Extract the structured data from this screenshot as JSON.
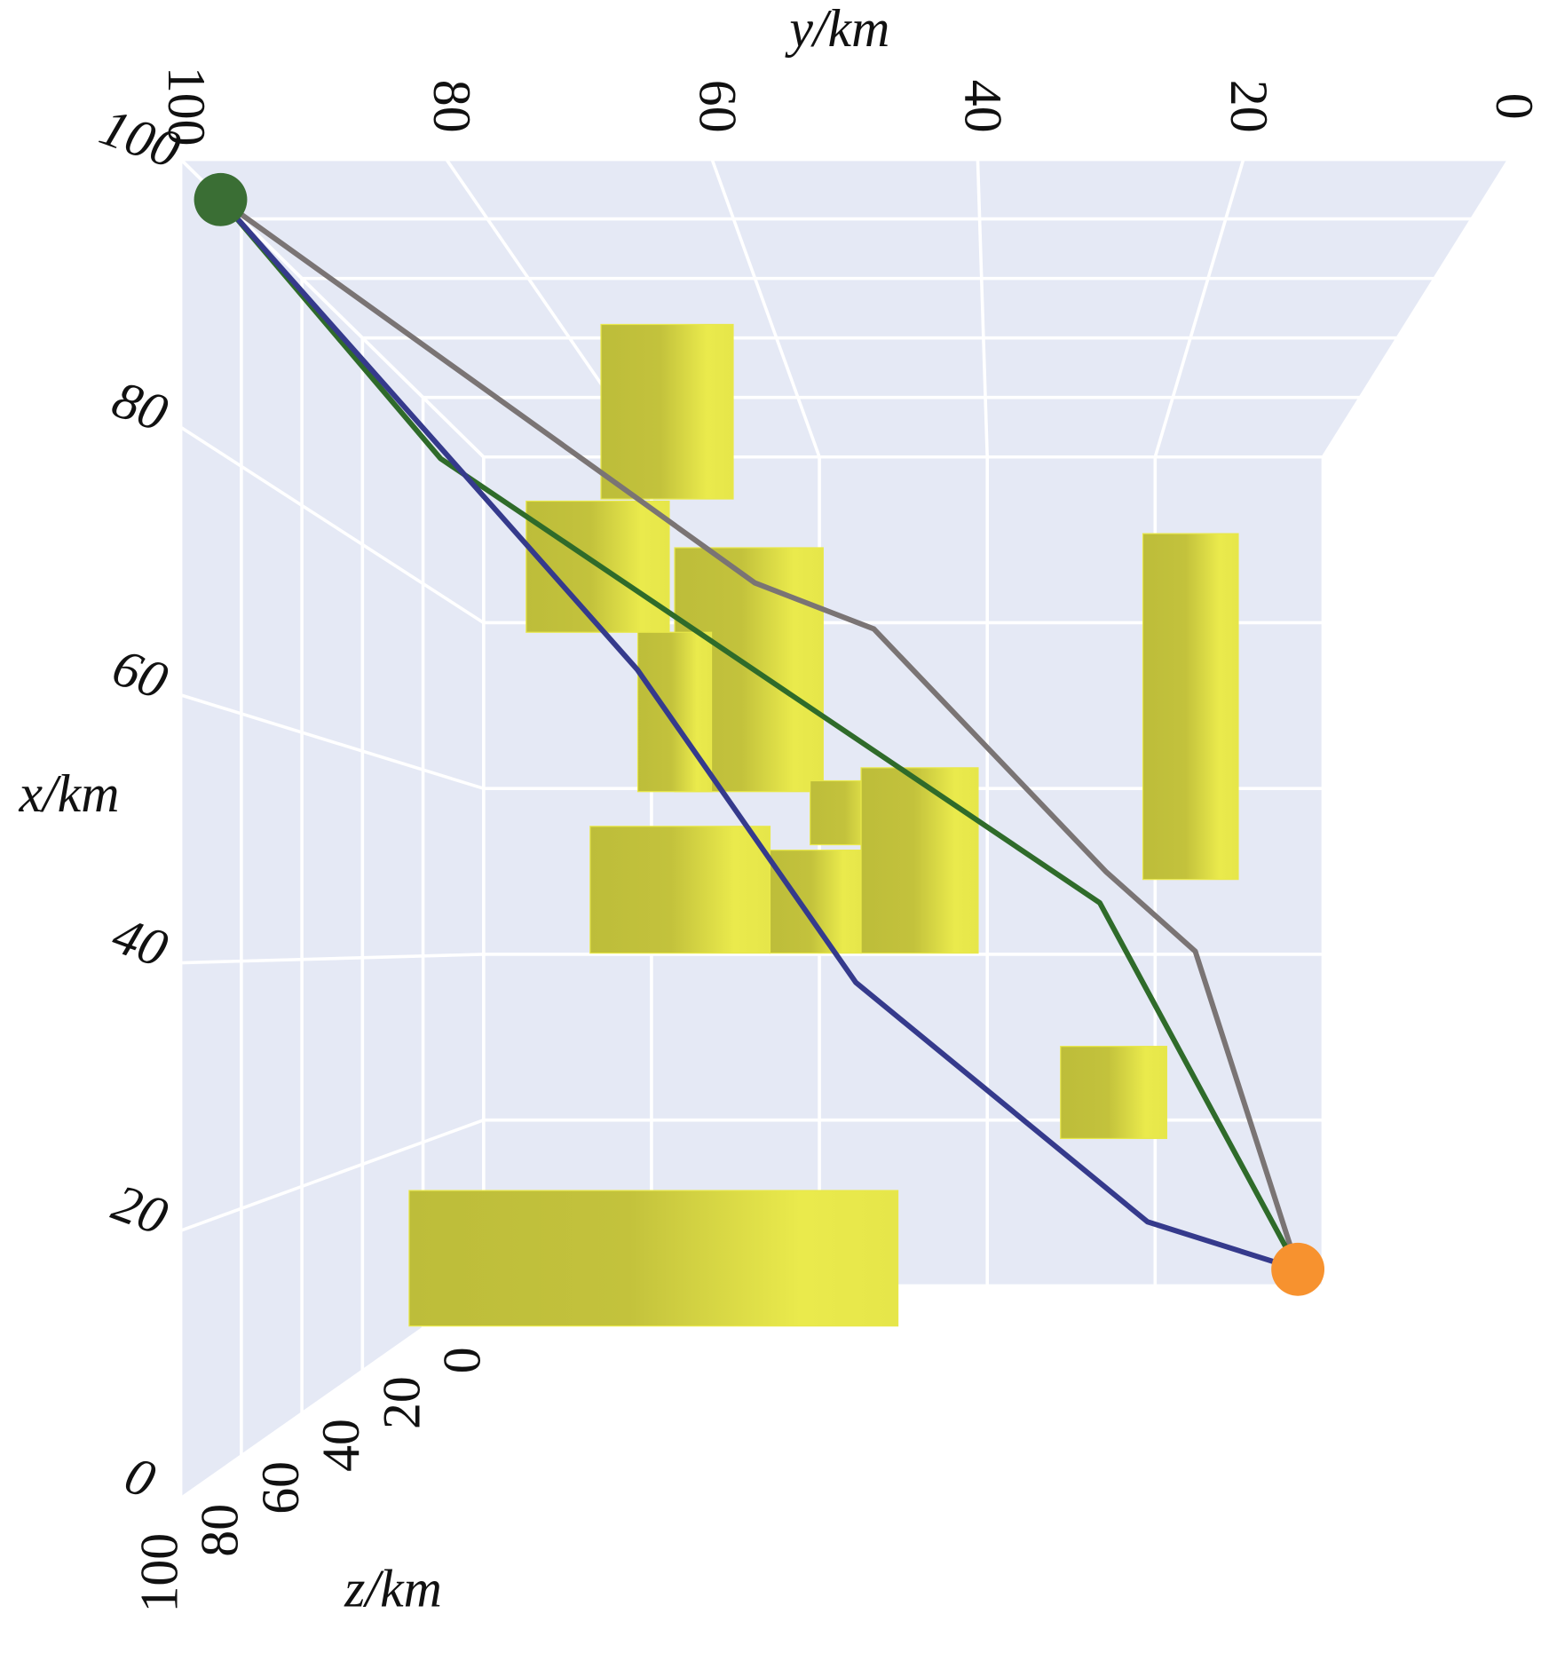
{
  "chart_data": {
    "type": "line3d",
    "x_label": "x/km",
    "y_label": "y/km",
    "z_label": "z/km",
    "xlim": [
      0,
      100
    ],
    "ylim": [
      0,
      100
    ],
    "zlim": [
      0,
      100
    ],
    "xticks": [
      0,
      20,
      40,
      60,
      80,
      100
    ],
    "yticks": [
      0,
      20,
      40,
      60,
      80,
      100
    ],
    "zticks": [
      0,
      20,
      40,
      60,
      80,
      100
    ],
    "grid": true,
    "series": [
      {
        "color": "#7a7474",
        "x": [
          97,
          78.9,
          73.9,
          71.1,
          48.7,
          40.5,
          2
        ],
        "y": [
          97,
          69.0,
          60.5,
          50.3,
          27.7,
          17.6,
          3
        ],
        "z": [
          100,
          70,
          55,
          45,
          30,
          20,
          0
        ]
      },
      {
        "color": "#2f6b2a",
        "x": [
          97,
          82.3,
          45.5,
          2
        ],
        "y": [
          97,
          85.7,
          28.3,
          3
        ],
        "z": [
          100,
          70,
          30,
          0
        ]
      },
      {
        "color": "#353a8c",
        "x": [
          97,
          65.0,
          37.7,
          10.6,
          2
        ],
        "y": [
          97,
          69.7,
          52.0,
          22.3,
          3
        ],
        "z": [
          100,
          65,
          45,
          15,
          0
        ]
      }
    ],
    "start": {
      "x": 97,
      "y": 97,
      "z": 100,
      "color": "#3a6e34"
    },
    "end": {
      "x": 2,
      "y": 3,
      "z": 0,
      "color": "#f7922f"
    },
    "obstacle_color": "#e8e84a",
    "obstacles": [
      {
        "x": [
          82.4,
          98.5
        ],
        "y": [
          63.0,
          75.2
        ],
        "z": 50
      },
      {
        "x": [
          55.4,
          77.9
        ],
        "y": [
          54.7,
          68.4
        ],
        "z": 50
      },
      {
        "x": [
          70.1,
          82.2
        ],
        "y": [
          68.9,
          82.1
        ],
        "z": 50
      },
      {
        "x": [
          55.4,
          70.1
        ],
        "y": [
          65.0,
          71.8
        ],
        "z": 50
      },
      {
        "x": [
          40.5,
          52.2
        ],
        "y": [
          59.6,
          76.2
        ],
        "z": 50
      },
      {
        "x": [
          40.5,
          50.0
        ],
        "y": [
          51.2,
          59.6
        ],
        "z": 50
      },
      {
        "x": [
          50.5,
          56.4
        ],
        "y": [
          48.8,
          55.9
        ],
        "z": 50
      },
      {
        "x": [
          40.5,
          57.6
        ],
        "y": [
          40.4,
          51.2
        ],
        "z": 50
      },
      {
        "x": [
          47.3,
          79.2
        ],
        "y": [
          16.4,
          25.2
        ],
        "z": 50
      },
      {
        "x": [
          23.4,
          31.9
        ],
        "y": [
          23.0,
          32.8
        ],
        "z": 50
      },
      {
        "x": [
          6.1,
          18.6
        ],
        "y": [
          47.8,
          92.9
        ],
        "z": 50
      }
    ]
  }
}
